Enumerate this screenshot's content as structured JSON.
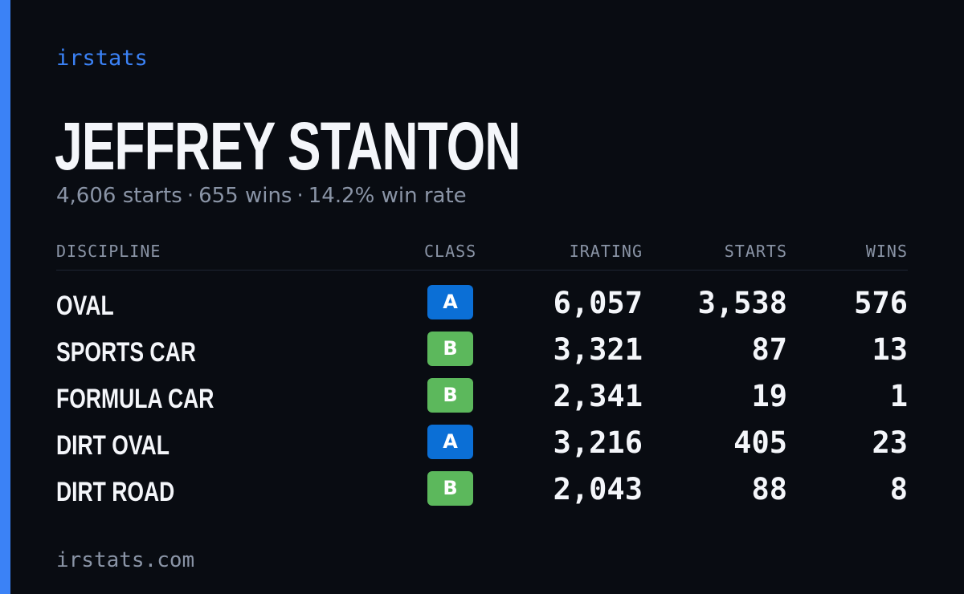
{
  "brand": "irstats",
  "driver": {
    "name": "JEFFREY STANTON",
    "starts": "4,606 starts",
    "wins": "655 wins",
    "win_rate": "14.2% win rate",
    "separator": "·"
  },
  "table": {
    "headers": {
      "discipline": "DISCIPLINE",
      "class": "CLASS",
      "irating": "IRATING",
      "starts": "STARTS",
      "wins": "WINS"
    },
    "rows": [
      {
        "discipline": "OVAL",
        "class": "A",
        "irating": "6,057",
        "starts": "3,538",
        "wins": "576"
      },
      {
        "discipline": "SPORTS CAR",
        "class": "B",
        "irating": "3,321",
        "starts": "87",
        "wins": "13"
      },
      {
        "discipline": "FORMULA CAR",
        "class": "B",
        "irating": "2,341",
        "starts": "19",
        "wins": "1"
      },
      {
        "discipline": "DIRT OVAL",
        "class": "A",
        "irating": "3,216",
        "starts": "405",
        "wins": "23"
      },
      {
        "discipline": "DIRT ROAD",
        "class": "B",
        "irating": "2,043",
        "starts": "88",
        "wins": "8"
      }
    ]
  },
  "class_colors": {
    "A": "#0b6fd6",
    "B": "#5cb85c"
  },
  "colors": {
    "accent": "#3b82f6",
    "background": "#090c12",
    "muted": "#8a94a6",
    "text": "#f4f6fa"
  },
  "footer": "irstats.com"
}
